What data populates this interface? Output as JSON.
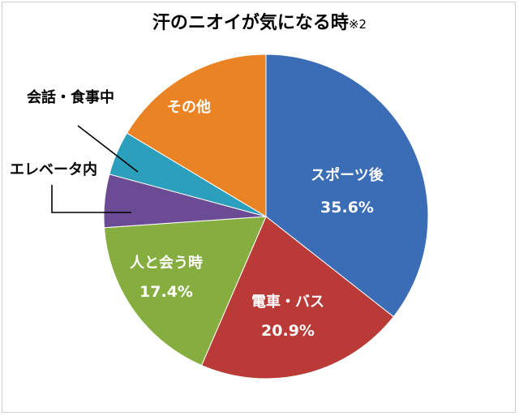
{
  "chart_data": {
    "type": "pie",
    "title": "汗のニオイが気になる時",
    "title_note": "※2",
    "start_angle_deg": 0,
    "direction": "clockwise",
    "slices": [
      {
        "label": "スポーツ後",
        "value": 35.6,
        "value_label": "35.6%",
        "color": "#3a6db5"
      },
      {
        "label": "電車・バス",
        "value": 20.9,
        "value_label": "20.9%",
        "color": "#b93a36"
      },
      {
        "label": "人と会う時",
        "value": 17.4,
        "value_label": "17.4%",
        "color": "#86ad3f"
      },
      {
        "label": "エレベータ内",
        "value": 5.3,
        "value_label": "",
        "color": "#6b4b94"
      },
      {
        "label": "会話・食事中",
        "value": 4.4,
        "value_label": "",
        "color": "#2c9fbd"
      },
      {
        "label": "その他",
        "value": 16.4,
        "value_label": "",
        "color": "#e98324"
      }
    ]
  }
}
